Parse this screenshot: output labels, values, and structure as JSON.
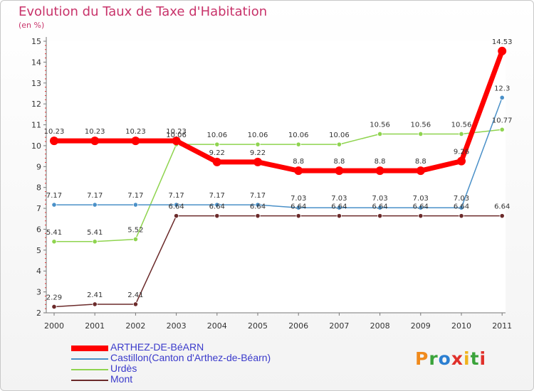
{
  "title": "Evolution du Taux de Taxe d'Habitation",
  "unit": "(en %)",
  "logo": {
    "text": "Proxiti",
    "colors": [
      "#f08a1c",
      "#3aa33a",
      "#2b7fd1",
      "#e0302a",
      "#f0b21c",
      "#3aa33a",
      "#e0302a"
    ]
  },
  "chart_data": {
    "type": "line",
    "title": "Evolution du Taux de Taxe d'Habitation",
    "ylabel": "(en %)",
    "xlabel": "",
    "categories": [
      "2000",
      "2001",
      "2002",
      "2003",
      "2004",
      "2005",
      "2006",
      "2007",
      "2008",
      "2009",
      "2010",
      "2011"
    ],
    "ylim": [
      2,
      15
    ],
    "yticks": [
      "2",
      "3",
      "4",
      "5",
      "6",
      "7",
      "8",
      "9",
      "10",
      "11",
      "12",
      "13",
      "14",
      "15"
    ],
    "grid": false,
    "legend_position": "bottom",
    "series": [
      {
        "name": "ARTHEZ-DE-BéARN",
        "color": "#ff0000",
        "values": [
          10.23,
          10.23,
          10.23,
          10.23,
          9.22,
          9.22,
          8.8,
          8.8,
          8.8,
          8.8,
          9.26,
          14.53
        ],
        "labels": [
          "10.23",
          "10.23",
          "10.23",
          "10.23",
          "9.22",
          "9.22",
          "8.8",
          "8.8",
          "8.8",
          "8.8",
          "9.26",
          "14.53"
        ]
      },
      {
        "name": "Castillon(Canton d'Arthez-de-Béarn)",
        "color": "#4a90c8",
        "values": [
          7.17,
          7.17,
          7.17,
          7.17,
          7.17,
          7.17,
          7.03,
          7.03,
          7.03,
          7.03,
          7.03,
          12.3
        ],
        "labels": [
          "7.17",
          "7.17",
          "7.17",
          "7.17",
          "7.17",
          "7.17",
          "7.03",
          "7.03",
          "7.03",
          "7.03",
          "7.03",
          "12.3"
        ]
      },
      {
        "name": "Urdès",
        "color": "#8fd44f",
        "values": [
          5.41,
          5.41,
          5.52,
          10.06,
          10.06,
          10.06,
          10.06,
          10.06,
          10.56,
          10.56,
          10.56,
          10.77
        ],
        "labels": [
          "5.41",
          "5.41",
          "5.52",
          "10.06",
          "10.06",
          "10.06",
          "10.06",
          "10.06",
          "10.56",
          "10.56",
          "10.56",
          "10.77"
        ]
      },
      {
        "name": "Mont",
        "color": "#6b2a2a",
        "values": [
          2.29,
          2.41,
          2.41,
          6.64,
          6.64,
          6.64,
          6.64,
          6.64,
          6.64,
          6.64,
          6.64,
          6.64
        ],
        "labels": [
          "2.29",
          "2.41",
          "2.41",
          "6.64",
          "6.64",
          "6.64",
          "6.64",
          "6.64",
          "6.64",
          "6.64",
          "6.64",
          "6.64"
        ]
      }
    ]
  }
}
